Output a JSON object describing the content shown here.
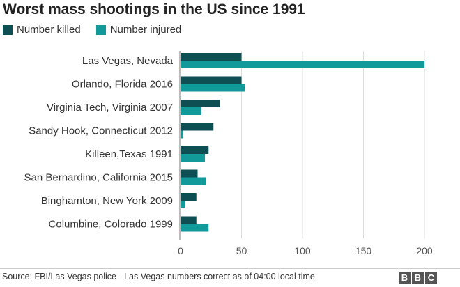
{
  "chart_data": {
    "type": "bar",
    "orientation": "horizontal",
    "title": "Worst mass shootings in the US since 1991",
    "categories": [
      "Las Vegas, Nevada",
      "Orlando, Florida 2016",
      "Virginia Tech, Virginia 2007",
      "Sandy Hook, Connecticut 2012",
      "Killeen,Texas 1991",
      "San Bernardino, California 2015",
      "Binghamton, New York 2009",
      "Columbine, Colorado 1999"
    ],
    "series": [
      {
        "name": "Number killed",
        "color": "#0d4f52",
        "values": [
          50,
          50,
          32,
          27,
          23,
          14,
          13,
          13
        ]
      },
      {
        "name": "Number injured",
        "color": "#129a9a",
        "values": [
          200,
          53,
          17,
          2,
          20,
          21,
          4,
          23
        ]
      }
    ],
    "xlim": [
      0,
      200
    ],
    "xticks": [
      0,
      50,
      100,
      150,
      200
    ],
    "source": "Source: FBI/Las Vegas police - Las Vegas numbers correct as of 04:00 local time",
    "logo": "BBC"
  }
}
